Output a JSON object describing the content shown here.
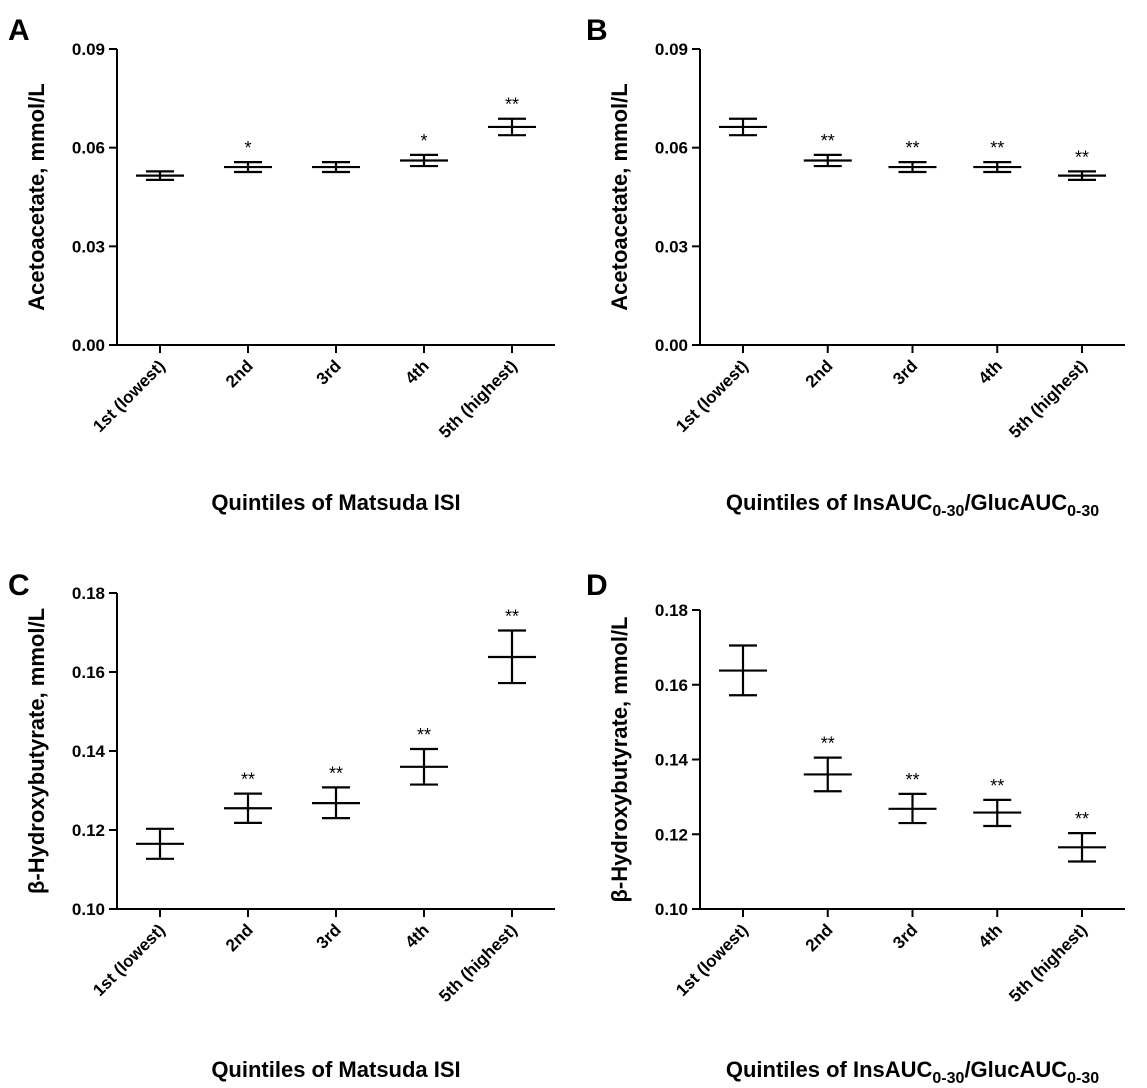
{
  "chart_data": [
    {
      "type": "scatter",
      "panel": "A",
      "categories": [
        "1st (lowest)",
        "2nd",
        "3rd",
        "4th",
        "5th (highest)"
      ],
      "ylabel": "Acetoacetate, mmol/L",
      "xlabel": "Quintiles of Matsuda ISI",
      "xlabel_sub": [],
      "ylim": [
        0,
        0.09
      ],
      "yticks": [
        0,
        0.03,
        0.06,
        0.09
      ],
      "ytick_labels": [
        "0.00",
        "0.03",
        "0.06",
        "0.09"
      ],
      "mean": [
        0.0515,
        0.0541,
        0.0541,
        0.0561,
        0.0663
      ],
      "upper": [
        0.0528,
        0.0556,
        0.0556,
        0.0578,
        0.0688
      ],
      "lower": [
        0.0502,
        0.0526,
        0.0526,
        0.0544,
        0.0638
      ],
      "significance": [
        "",
        "*",
        "",
        "*",
        "**"
      ]
    },
    {
      "type": "scatter",
      "panel": "B",
      "categories": [
        "1st (lowest)",
        "2nd",
        "3rd",
        "4th",
        "5th (highest)"
      ],
      "ylabel": "Acetoacetate, mmol/L",
      "xlabel": "Quintiles of InsAUC",
      "xlabel_sub": [
        "0-30",
        "/GlucAUC",
        "0-30"
      ],
      "ylim": [
        0,
        0.09
      ],
      "yticks": [
        0,
        0.03,
        0.06,
        0.09
      ],
      "ytick_labels": [
        "0.00",
        "0.03",
        "0.06",
        "0.09"
      ],
      "mean": [
        0.0663,
        0.0561,
        0.0541,
        0.0541,
        0.0515
      ],
      "upper": [
        0.0688,
        0.0578,
        0.0556,
        0.0556,
        0.0528
      ],
      "lower": [
        0.0638,
        0.0544,
        0.0526,
        0.0526,
        0.0502
      ],
      "significance": [
        "",
        "**",
        "**",
        "**",
        "**"
      ]
    },
    {
      "type": "scatter",
      "panel": "C",
      "categories": [
        "1st (lowest)",
        "2nd",
        "3rd",
        "4th",
        "5th (highest)"
      ],
      "ylabel": "β-Hydroxybutyrate, mmol/L",
      "xlabel": "Quintiles of Matsuda ISI",
      "xlabel_sub": [],
      "ylim": [
        0.1,
        0.18
      ],
      "yticks": [
        0.1,
        0.12,
        0.14,
        0.16,
        0.18
      ],
      "ytick_labels": [
        "0.10",
        "0.12",
        "0.14",
        "0.16",
        "0.18"
      ],
      "mean": [
        0.1165,
        0.1255,
        0.1268,
        0.136,
        0.1638
      ],
      "upper": [
        0.1203,
        0.1292,
        0.1308,
        0.1405,
        0.1705
      ],
      "lower": [
        0.1127,
        0.1218,
        0.123,
        0.1315,
        0.1572
      ],
      "significance": [
        "",
        "**",
        "**",
        "**",
        "**"
      ]
    },
    {
      "type": "scatter",
      "panel": "D",
      "categories": [
        "1st (lowest)",
        "2nd",
        "3rd",
        "4th",
        "5th (highest)"
      ],
      "ylabel": "β-Hydroxybutyrate, mmol/L",
      "xlabel": "Quintiles of InsAUC",
      "xlabel_sub": [
        "0-30",
        "/GlucAUC",
        "0-30"
      ],
      "ylim": [
        0.1,
        0.18
      ],
      "yticks": [
        0.1,
        0.12,
        0.14,
        0.16,
        0.18
      ],
      "ytick_labels": [
        "0.10",
        "0.12",
        "0.14",
        "0.16",
        "0.18"
      ],
      "mean": [
        0.1638,
        0.136,
        0.1268,
        0.1258,
        0.1165
      ],
      "upper": [
        0.1705,
        0.1405,
        0.1308,
        0.1292,
        0.1203
      ],
      "lower": [
        0.1572,
        0.1315,
        0.123,
        0.1222,
        0.1127
      ],
      "significance": [
        "",
        "**",
        "**",
        "**",
        "**"
      ]
    }
  ]
}
